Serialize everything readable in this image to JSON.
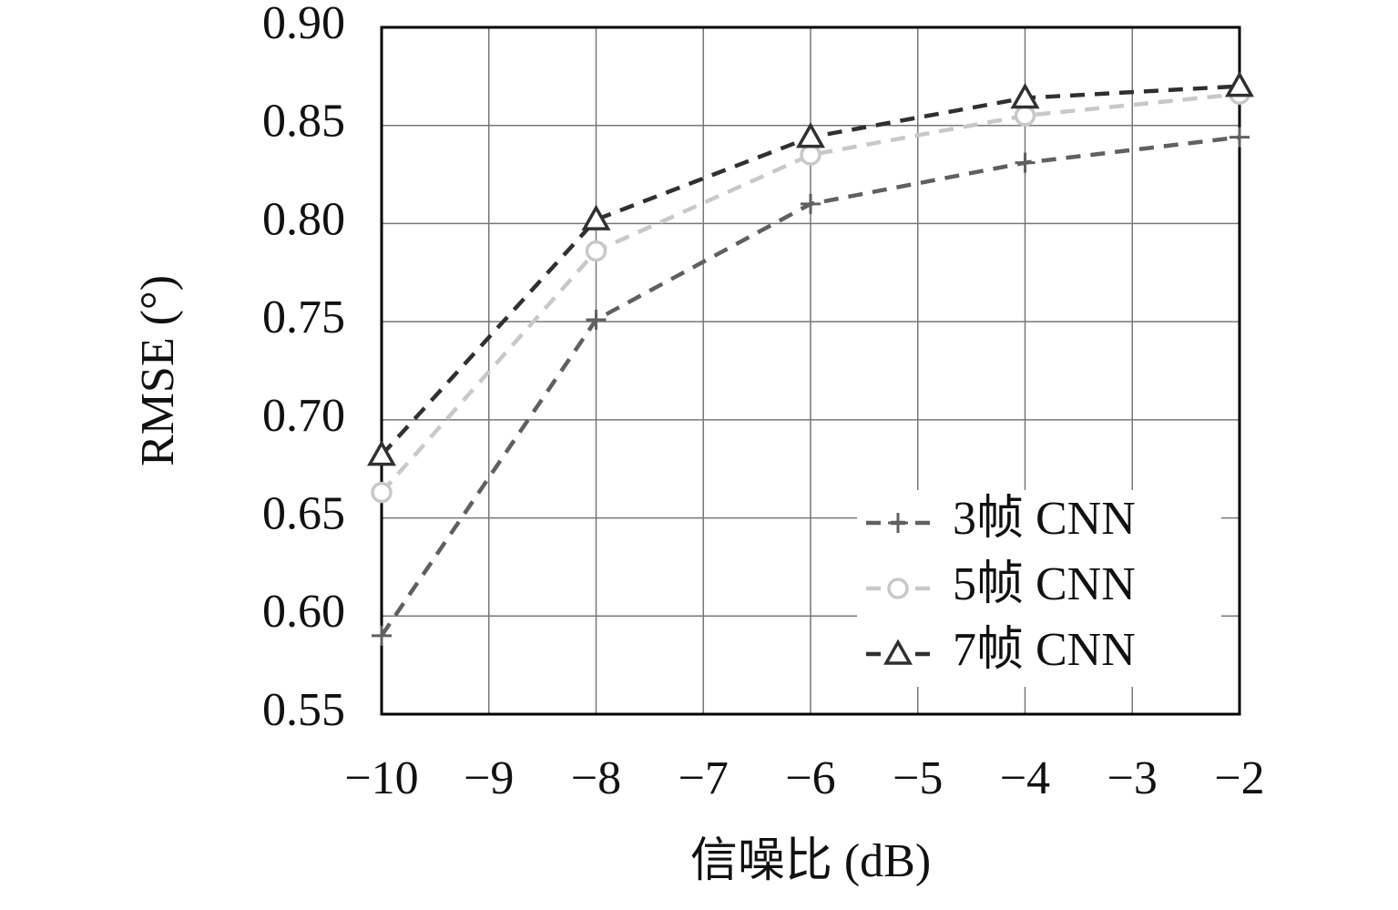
{
  "chart_data": {
    "type": "line",
    "xlabel": "信噪比 (dB)",
    "ylabel": "RMSE (°)",
    "x": [
      -10,
      -8,
      -6,
      -4,
      -2
    ],
    "series": [
      {
        "name": "3帧 CNN",
        "color": "#606060",
        "marker": "plus",
        "values": [
          0.59,
          0.751,
          0.81,
          0.831,
          0.844
        ]
      },
      {
        "name": "5帧 CNN",
        "color": "#c8c8c8",
        "marker": "circle",
        "values": [
          0.663,
          0.786,
          0.835,
          0.855,
          0.866
        ]
      },
      {
        "name": "7帧 CNN",
        "color": "#303030",
        "marker": "triangle",
        "values": [
          0.682,
          0.802,
          0.844,
          0.864,
          0.87
        ]
      }
    ],
    "xlim": [
      -10,
      -2
    ],
    "xticks": [
      {
        "value": -10,
        "label": "−10"
      },
      {
        "value": -9,
        "label": "−9"
      },
      {
        "value": -8,
        "label": "−8"
      },
      {
        "value": -7,
        "label": "−7"
      },
      {
        "value": -6,
        "label": "−6"
      },
      {
        "value": -5,
        "label": "−5"
      },
      {
        "value": -4,
        "label": "−4"
      },
      {
        "value": -3,
        "label": "−3"
      },
      {
        "value": -2,
        "label": "−2"
      }
    ],
    "ylim": [
      0.55,
      0.9
    ],
    "yticks": [
      0.55,
      {
        "value": 0.6,
        "label": "0.60"
      },
      0.65,
      {
        "value": 0.7,
        "label": "0.70"
      },
      0.75,
      {
        "value": 0.8,
        "label": "0.80"
      },
      0.85,
      {
        "value": 0.9,
        "label": "0.90"
      }
    ],
    "grid": true,
    "legend": "lower right"
  }
}
